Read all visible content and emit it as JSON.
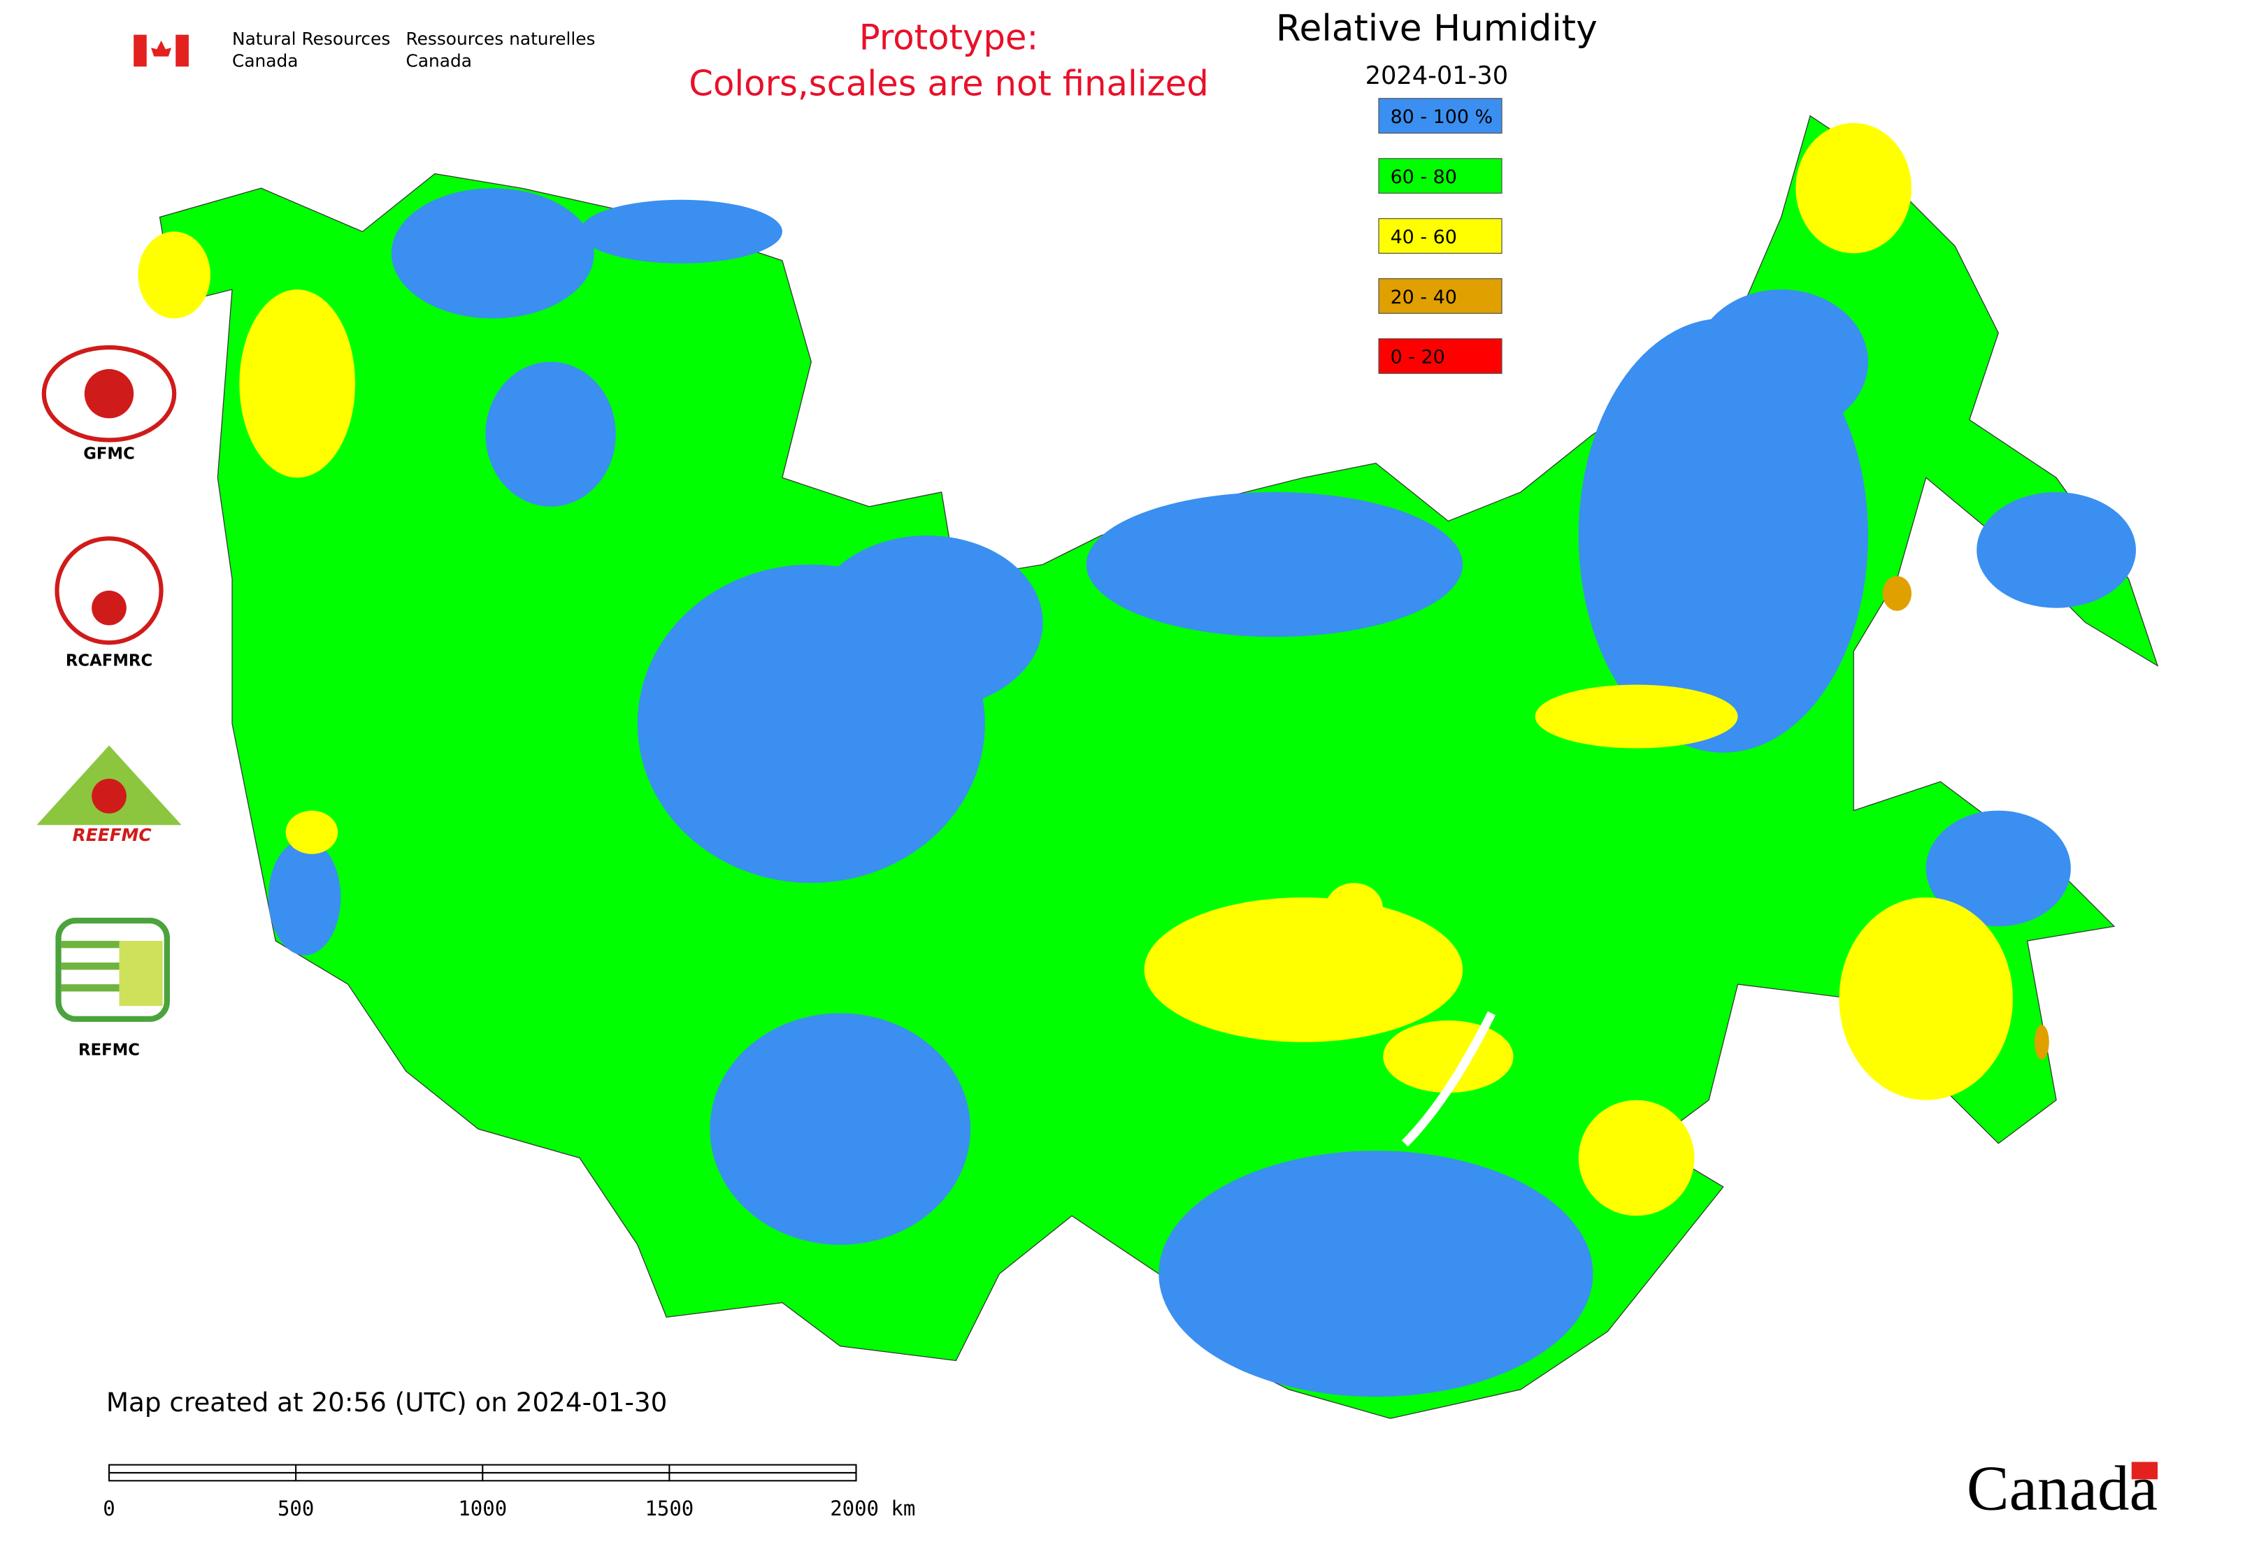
{
  "header": {
    "org_en": [
      "Natural Resources",
      "Canada"
    ],
    "org_fr": [
      "Ressources naturelles",
      "Canada"
    ],
    "prototype": [
      "Prototype:",
      "Colors,scales are not finalized"
    ]
  },
  "map": {
    "title": "Relative Humidity",
    "date": "2024-01-30",
    "legend": [
      {
        "label": "80 - 100 %",
        "color": "#3b8ff0"
      },
      {
        "label": "60 - 80",
        "color": "#00ff00"
      },
      {
        "label": "40 - 60",
        "color": "#ffff00"
      },
      {
        "label": "20 - 40",
        "color": "#e0a000"
      },
      {
        "label": "0 - 20",
        "color": "#ff0000"
      }
    ],
    "logos": [
      "GFMC",
      "RCAFMRC",
      "REEFMC",
      "REFMC"
    ],
    "created": "Map created at 20:56 (UTC) on 2024-01-30",
    "scale_bar": [
      "0",
      "500",
      "1000",
      "1500",
      "2000 km"
    ]
  },
  "footer": {
    "wordmark": "Canada"
  }
}
